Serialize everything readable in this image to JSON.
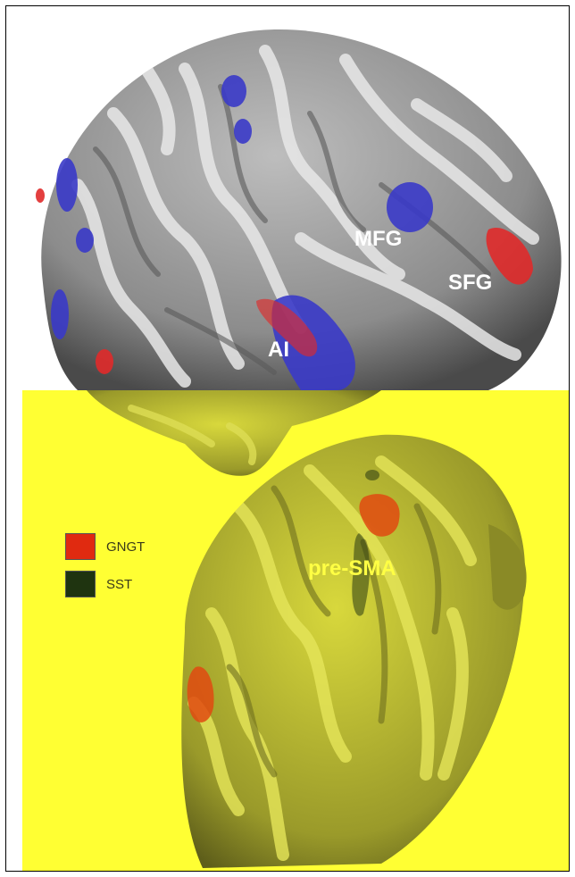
{
  "labels": {
    "mfg": "MFG",
    "sfg": "SFG",
    "ai": "AI",
    "presma": "pre-SMA"
  },
  "legend": [
    {
      "label": "GNGT",
      "color": "#e02a10"
    },
    {
      "label": "SST",
      "color": "#1f3410"
    }
  ],
  "colors": {
    "overlay_yellow": "#ffff33",
    "gyri_light": "#e6e6e6",
    "sulci_dark": "#707070",
    "activation_blue": "#3a3ac8",
    "activation_red": "#e02a2a"
  }
}
